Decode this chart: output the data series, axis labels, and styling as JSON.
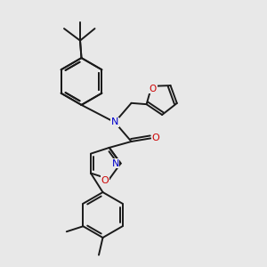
{
  "bg_color": "#e8e8e8",
  "atom_colors": {
    "C": "#000000",
    "N": "#0000cc",
    "O": "#cc0000"
  },
  "bond_color": "#1a1a1a",
  "bond_width": 1.4,
  "figsize": [
    3.0,
    3.0
  ],
  "dpi": 100
}
